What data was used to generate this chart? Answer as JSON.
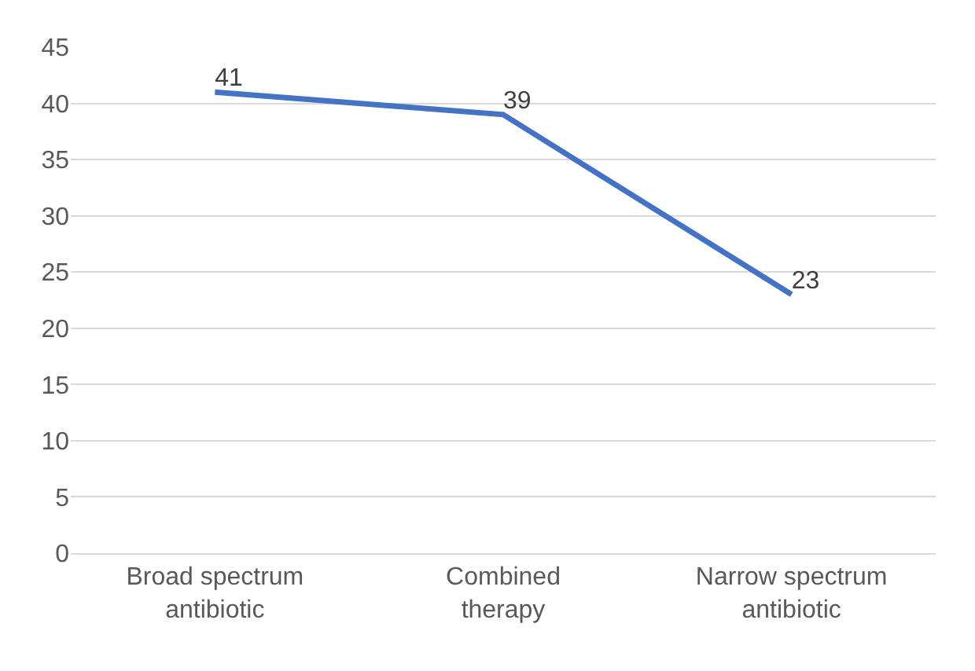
{
  "chart_data": {
    "type": "line",
    "categories": [
      "Broad spectrum antibiotic",
      "Combined therapy",
      "Narrow spectrum antibiotic"
    ],
    "series": [
      {
        "color": "#4472c4",
        "values": [
          41,
          39,
          23
        ]
      }
    ],
    "ylim": [
      0,
      45
    ],
    "yticks": [
      0,
      5,
      10,
      15,
      20,
      25,
      30,
      35,
      40,
      45
    ],
    "grid": "y",
    "line_style": "solid",
    "data_labels": true
  }
}
